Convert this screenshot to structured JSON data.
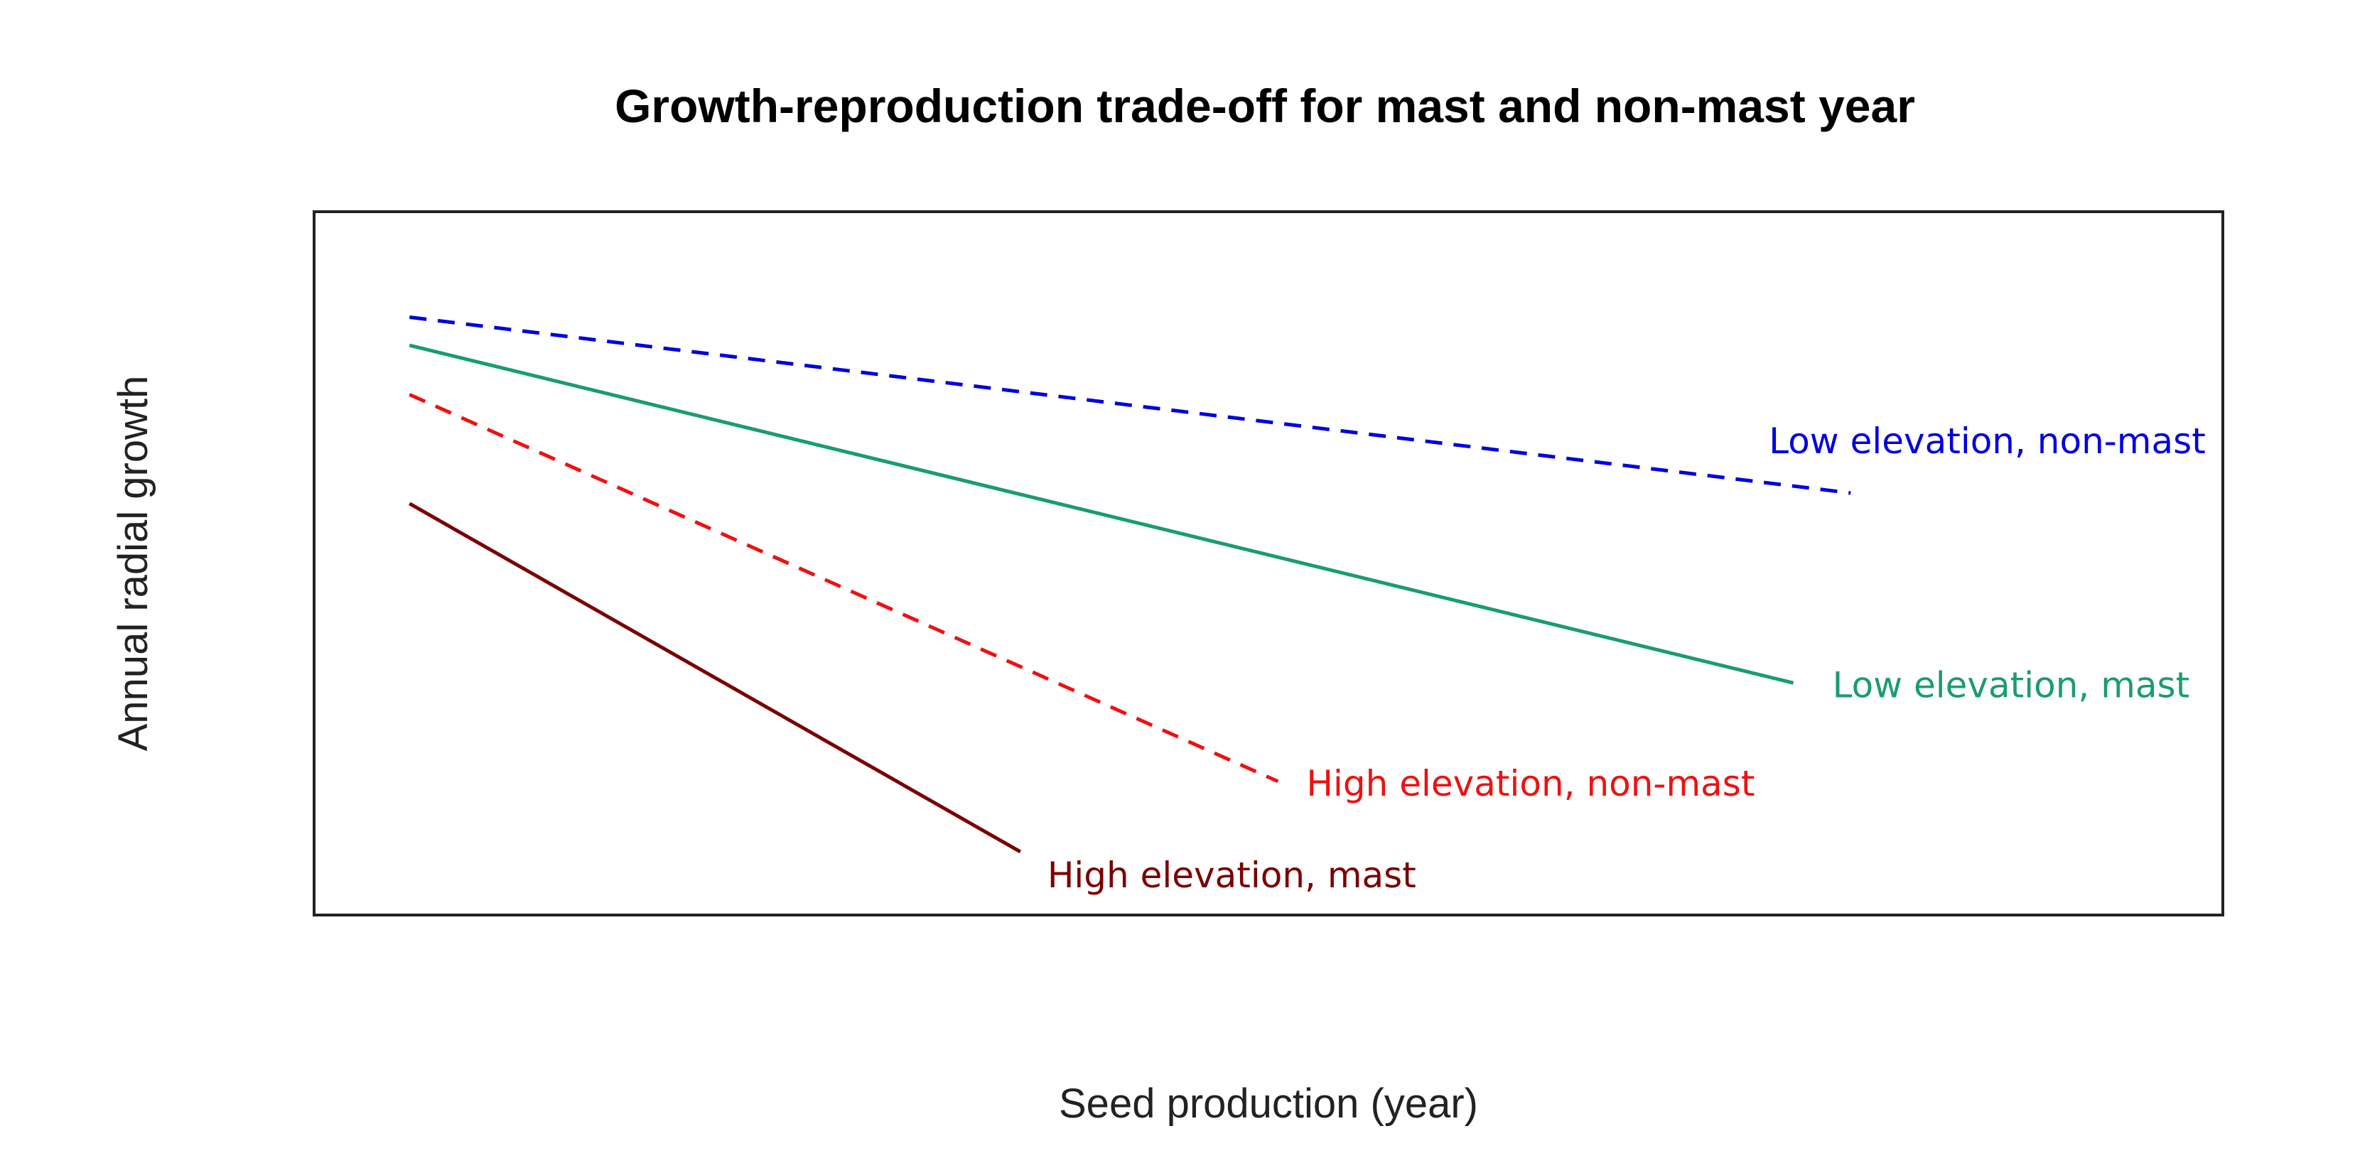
{
  "chart_data": {
    "type": "line",
    "title": "Growth-reproduction trade-off for mast and non-mast year",
    "xlabel": "Seed production (year)",
    "ylabel": "Annual radial growth",
    "xlim": [
      0,
      1
    ],
    "ylim": [
      0,
      1
    ],
    "grid": false,
    "legend": "direct labels at line ends",
    "series": [
      {
        "name": "Low elevation, non-mast",
        "color": "#0000dd",
        "dash": "dashed",
        "x": [
          0.05,
          0.805
        ],
        "y": [
          0.85,
          0.6
        ]
      },
      {
        "name": "Low elevation, mast",
        "color": "#1a9b74",
        "dash": "solid",
        "x": [
          0.05,
          0.775
        ],
        "y": [
          0.81,
          0.33
        ]
      },
      {
        "name": "High elevation, non-mast",
        "color": "#ee1111",
        "dash": "dashed",
        "x": [
          0.05,
          0.505
        ],
        "y": [
          0.74,
          0.19
        ]
      },
      {
        "name": "High elevation, mast",
        "color": "#7a0000",
        "dash": "solid",
        "x": [
          0.05,
          0.37
        ],
        "y": [
          0.585,
          0.09
        ]
      }
    ]
  }
}
